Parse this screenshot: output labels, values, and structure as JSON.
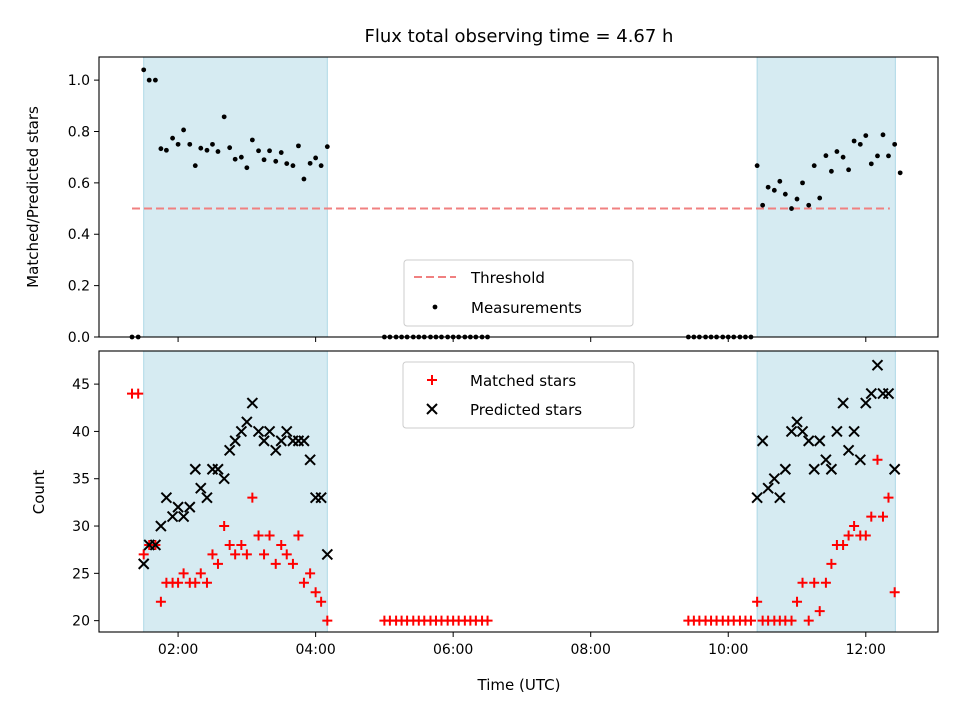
{
  "chart_data": [
    {
      "type": "scatter",
      "title": "Flux total observing time = 4.67 h",
      "xlabel": "",
      "ylabel": "Matched/Predicted stars",
      "xlim": [
        0.85,
        13.05
      ],
      "ylim": [
        0.0,
        1.09
      ],
      "yticks": [
        "0.0",
        "0.2",
        "0.4",
        "0.6",
        "0.8",
        "1.0"
      ],
      "xticks_hours": [
        2,
        4,
        6,
        8,
        10,
        12
      ],
      "grid": false,
      "legend_position": "lower-center",
      "shaded_intervals": [
        [
          1.5,
          4.17
        ],
        [
          10.42,
          12.43
        ]
      ],
      "shade_color": "#add8e6",
      "threshold": {
        "name": "Threshold",
        "y": 0.5,
        "x_range": [
          1.33,
          12.35
        ],
        "color": "#f08080"
      },
      "series": [
        {
          "name": "Measurements",
          "color": "#000000",
          "points": [
            [
              1.33,
              0.0
            ],
            [
              1.42,
              0.0
            ],
            [
              1.5,
              1.04
            ],
            [
              1.58,
              1.0
            ],
            [
              1.67,
              1.0
            ],
            [
              1.75,
              0.733
            ],
            [
              1.83,
              0.727
            ],
            [
              1.92,
              0.774
            ],
            [
              2.0,
              0.75
            ],
            [
              2.08,
              0.806
            ],
            [
              2.17,
              0.75
            ],
            [
              2.25,
              0.667
            ],
            [
              2.33,
              0.735
            ],
            [
              2.42,
              0.727
            ],
            [
              2.5,
              0.75
            ],
            [
              2.58,
              0.722
            ],
            [
              2.67,
              0.857
            ],
            [
              2.75,
              0.737
            ],
            [
              2.83,
              0.692
            ],
            [
              2.92,
              0.7
            ],
            [
              3.0,
              0.659
            ],
            [
              3.08,
              0.767
            ],
            [
              3.17,
              0.725
            ],
            [
              3.25,
              0.69
            ],
            [
              3.33,
              0.725
            ],
            [
              3.42,
              0.684
            ],
            [
              3.5,
              0.718
            ],
            [
              3.58,
              0.675
            ],
            [
              3.67,
              0.667
            ],
            [
              3.75,
              0.744
            ],
            [
              3.83,
              0.615
            ],
            [
              3.92,
              0.676
            ],
            [
              4.0,
              0.697
            ],
            [
              4.08,
              0.667
            ],
            [
              4.17,
              0.741
            ],
            [
              5.0,
              0.0
            ],
            [
              5.08,
              0.0
            ],
            [
              5.17,
              0.0
            ],
            [
              5.25,
              0.0
            ],
            [
              5.33,
              0.0
            ],
            [
              5.42,
              0.0
            ],
            [
              5.5,
              0.0
            ],
            [
              5.58,
              0.0
            ],
            [
              5.67,
              0.0
            ],
            [
              5.75,
              0.0
            ],
            [
              5.83,
              0.0
            ],
            [
              5.92,
              0.0
            ],
            [
              6.0,
              0.0
            ],
            [
              6.08,
              0.0
            ],
            [
              6.17,
              0.0
            ],
            [
              6.25,
              0.0
            ],
            [
              6.33,
              0.0
            ],
            [
              6.42,
              0.0
            ],
            [
              6.5,
              0.0
            ],
            [
              9.42,
              0.0
            ],
            [
              9.5,
              0.0
            ],
            [
              9.58,
              0.0
            ],
            [
              9.67,
              0.0
            ],
            [
              9.75,
              0.0
            ],
            [
              9.83,
              0.0
            ],
            [
              9.92,
              0.0
            ],
            [
              10.0,
              0.0
            ],
            [
              10.08,
              0.0
            ],
            [
              10.17,
              0.0
            ],
            [
              10.25,
              0.0
            ],
            [
              10.33,
              0.0
            ],
            [
              10.42,
              0.667
            ],
            [
              10.5,
              0.513
            ],
            [
              10.58,
              0.583
            ],
            [
              10.67,
              0.571
            ],
            [
              10.75,
              0.606
            ],
            [
              10.83,
              0.556
            ],
            [
              10.92,
              0.5
            ],
            [
              11.0,
              0.537
            ],
            [
              11.08,
              0.6
            ],
            [
              11.17,
              0.513
            ],
            [
              11.25,
              0.667
            ],
            [
              11.33,
              0.541
            ],
            [
              11.42,
              0.706
            ],
            [
              11.5,
              0.645
            ],
            [
              11.58,
              0.722
            ],
            [
              11.67,
              0.7
            ],
            [
              11.75,
              0.651
            ],
            [
              11.83,
              0.763
            ],
            [
              11.92,
              0.75
            ],
            [
              12.0,
              0.784
            ],
            [
              12.08,
              0.674
            ],
            [
              12.17,
              0.705
            ],
            [
              12.25,
              0.787
            ],
            [
              12.33,
              0.705
            ],
            [
              12.42,
              0.75
            ],
            [
              12.5,
              0.639
            ]
          ]
        }
      ]
    },
    {
      "type": "scatter",
      "title": "",
      "xlabel": "Time (UTC)",
      "ylabel": "Count",
      "xlim": [
        0.85,
        13.05
      ],
      "ylim": [
        18.8,
        48.5
      ],
      "yticks": [
        "20",
        "25",
        "30",
        "35",
        "40",
        "45"
      ],
      "xticks": [
        "02:00",
        "04:00",
        "06:00",
        "08:00",
        "10:00",
        "12:00"
      ],
      "xticks_hours": [
        2,
        4,
        6,
        8,
        10,
        12
      ],
      "grid": false,
      "legend_position": "upper-center",
      "shaded_intervals": [
        [
          1.5,
          4.17
        ],
        [
          10.42,
          12.43
        ]
      ],
      "shade_color": "#add8e6",
      "series": [
        {
          "name": "Matched stars",
          "marker": "plus",
          "color": "#ff0000",
          "points": [
            [
              1.33,
              44
            ],
            [
              1.42,
              44
            ],
            [
              1.5,
              27
            ],
            [
              1.58,
              28
            ],
            [
              1.67,
              28
            ],
            [
              1.75,
              22
            ],
            [
              1.83,
              24
            ],
            [
              1.92,
              24
            ],
            [
              2.0,
              24
            ],
            [
              2.08,
              25
            ],
            [
              2.17,
              24
            ],
            [
              2.25,
              24
            ],
            [
              2.33,
              25
            ],
            [
              2.42,
              24
            ],
            [
              2.5,
              27
            ],
            [
              2.58,
              26
            ],
            [
              2.67,
              30
            ],
            [
              2.75,
              28
            ],
            [
              2.83,
              27
            ],
            [
              2.92,
              28
            ],
            [
              3.0,
              27
            ],
            [
              3.08,
              33
            ],
            [
              3.17,
              29
            ],
            [
              3.25,
              27
            ],
            [
              3.33,
              29
            ],
            [
              3.42,
              26
            ],
            [
              3.5,
              28
            ],
            [
              3.58,
              27
            ],
            [
              3.67,
              26
            ],
            [
              3.75,
              29
            ],
            [
              3.83,
              24
            ],
            [
              3.92,
              25
            ],
            [
              4.0,
              23
            ],
            [
              4.08,
              22
            ],
            [
              4.17,
              20
            ],
            [
              5.0,
              20
            ],
            [
              5.08,
              20
            ],
            [
              5.17,
              20
            ],
            [
              5.25,
              20
            ],
            [
              5.33,
              20
            ],
            [
              5.42,
              20
            ],
            [
              5.5,
              20
            ],
            [
              5.58,
              20
            ],
            [
              5.67,
              20
            ],
            [
              5.75,
              20
            ],
            [
              5.83,
              20
            ],
            [
              5.92,
              20
            ],
            [
              6.0,
              20
            ],
            [
              6.08,
              20
            ],
            [
              6.17,
              20
            ],
            [
              6.25,
              20
            ],
            [
              6.33,
              20
            ],
            [
              6.42,
              20
            ],
            [
              6.5,
              20
            ],
            [
              9.42,
              20
            ],
            [
              9.5,
              20
            ],
            [
              9.58,
              20
            ],
            [
              9.67,
              20
            ],
            [
              9.75,
              20
            ],
            [
              9.83,
              20
            ],
            [
              9.92,
              20
            ],
            [
              10.0,
              20
            ],
            [
              10.08,
              20
            ],
            [
              10.17,
              20
            ],
            [
              10.25,
              20
            ],
            [
              10.33,
              20
            ],
            [
              10.42,
              22
            ],
            [
              10.5,
              20
            ],
            [
              10.58,
              20
            ],
            [
              10.67,
              20
            ],
            [
              10.75,
              20
            ],
            [
              10.83,
              20
            ],
            [
              10.92,
              20
            ],
            [
              11.0,
              22
            ],
            [
              11.08,
              24
            ],
            [
              11.17,
              20
            ],
            [
              11.25,
              24
            ],
            [
              11.33,
              21
            ],
            [
              11.42,
              24
            ],
            [
              11.5,
              26
            ],
            [
              11.58,
              28
            ],
            [
              11.67,
              28
            ],
            [
              11.75,
              29
            ],
            [
              11.83,
              30
            ],
            [
              11.92,
              29
            ],
            [
              12.0,
              29
            ],
            [
              12.08,
              31
            ],
            [
              12.17,
              37
            ],
            [
              12.25,
              31
            ],
            [
              12.33,
              33
            ],
            [
              12.42,
              23
            ]
          ]
        },
        {
          "name": "Predicted stars",
          "marker": "x",
          "color": "#000000",
          "points": [
            [
              1.5,
              26
            ],
            [
              1.58,
              28
            ],
            [
              1.67,
              28
            ],
            [
              1.75,
              30
            ],
            [
              1.83,
              33
            ],
            [
              1.92,
              31
            ],
            [
              2.0,
              32
            ],
            [
              2.08,
              31
            ],
            [
              2.17,
              32
            ],
            [
              2.25,
              36
            ],
            [
              2.33,
              34
            ],
            [
              2.42,
              33
            ],
            [
              2.5,
              36
            ],
            [
              2.58,
              36
            ],
            [
              2.67,
              35
            ],
            [
              2.75,
              38
            ],
            [
              2.83,
              39
            ],
            [
              2.92,
              40
            ],
            [
              3.0,
              41
            ],
            [
              3.08,
              43
            ],
            [
              3.17,
              40
            ],
            [
              3.25,
              39
            ],
            [
              3.33,
              40
            ],
            [
              3.42,
              38
            ],
            [
              3.5,
              39
            ],
            [
              3.58,
              40
            ],
            [
              3.67,
              39
            ],
            [
              3.75,
              39
            ],
            [
              3.83,
              39
            ],
            [
              3.92,
              37
            ],
            [
              4.0,
              33
            ],
            [
              4.08,
              33
            ],
            [
              4.17,
              27
            ],
            [
              10.42,
              33
            ],
            [
              10.5,
              39
            ],
            [
              10.58,
              34
            ],
            [
              10.67,
              35
            ],
            [
              10.75,
              33
            ],
            [
              10.83,
              36
            ],
            [
              10.92,
              40
            ],
            [
              11.0,
              41
            ],
            [
              11.08,
              40
            ],
            [
              11.17,
              39
            ],
            [
              11.25,
              36
            ],
            [
              11.33,
              39
            ],
            [
              11.42,
              37
            ],
            [
              11.5,
              36
            ],
            [
              11.58,
              40
            ],
            [
              11.67,
              43
            ],
            [
              11.75,
              38
            ],
            [
              11.83,
              40
            ],
            [
              11.92,
              37
            ],
            [
              12.0,
              43
            ],
            [
              12.08,
              44
            ],
            [
              12.17,
              47
            ],
            [
              12.25,
              44
            ],
            [
              12.33,
              44
            ],
            [
              12.42,
              36
            ]
          ]
        }
      ]
    }
  ]
}
